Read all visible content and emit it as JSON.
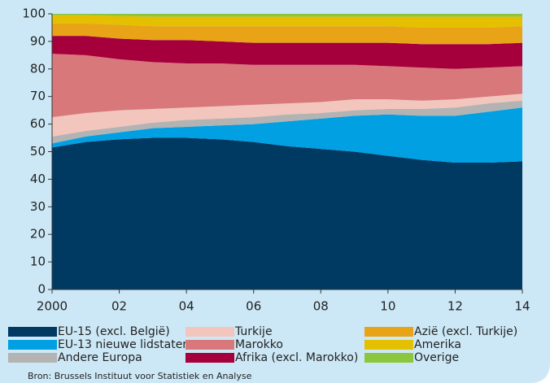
{
  "chart_data": {
    "type": "stacked_area",
    "x": [
      2000,
      2001,
      2002,
      2003,
      2004,
      2005,
      2006,
      2007,
      2008,
      2009,
      2010,
      2011,
      2012,
      2013,
      2014
    ],
    "xlim": [
      2000,
      2014
    ],
    "xticks": [
      2000,
      {
        "value": 2002,
        "label": "02"
      },
      {
        "value": 2004,
        "label": "04"
      },
      {
        "value": 2006,
        "label": "06"
      },
      {
        "value": 2008,
        "label": "08"
      },
      {
        "value": 2010,
        "label": "10"
      },
      {
        "value": 2012,
        "label": "12"
      },
      {
        "value": 2014,
        "label": "14"
      }
    ],
    "ylim": [
      0,
      100
    ],
    "yticks": [
      0,
      10,
      20,
      30,
      40,
      50,
      60,
      70,
      80,
      90,
      100
    ],
    "series": [
      {
        "name": "EU-15 (excl. België)",
        "color": "#003a63",
        "values": [
          51.5,
          53.5,
          54.5,
          55,
          55,
          54.5,
          53.5,
          52,
          51,
          50,
          48.5,
          47,
          46,
          46,
          46.5
        ]
      },
      {
        "name": "EU-13 nieuwe lidstaten",
        "color": "#00a0e3",
        "values": [
          1.5,
          2,
          2.5,
          3.5,
          4,
          5,
          6.5,
          9,
          11,
          13,
          15,
          16,
          17,
          18.5,
          19.5
        ]
      },
      {
        "name": "Andere Europa",
        "color": "#b3b3b3",
        "values": [
          2.5,
          2,
          2,
          2,
          2.5,
          2.5,
          2.5,
          2.5,
          2,
          2,
          2,
          2.5,
          3,
          3,
          2.5
        ]
      },
      {
        "name": "Turkije",
        "color": "#f2c6bd",
        "values": [
          7,
          6.5,
          6,
          5,
          4.5,
          4.5,
          4.5,
          4,
          4,
          4,
          3.5,
          3,
          3,
          2.5,
          2.5
        ]
      },
      {
        "name": "Marokko",
        "color": "#d9787a",
        "values": [
          23,
          21,
          18.5,
          17,
          16,
          15.5,
          14.5,
          14,
          13.5,
          12.5,
          12,
          12,
          11,
          10.5,
          10
        ]
      },
      {
        "name": "Afrika (excl. Marokko)",
        "color": "#a6003c",
        "values": [
          6.5,
          7,
          7.5,
          8,
          8.5,
          8,
          8,
          8,
          8,
          8,
          8.5,
          8.5,
          9,
          8.5,
          8.5
        ]
      },
      {
        "name": "Azië (excl. Turkije)",
        "color": "#e8a317",
        "values": [
          4.5,
          4.5,
          5,
          5,
          5,
          5.5,
          6,
          6,
          6,
          6,
          6,
          6,
          6,
          6,
          6
        ]
      },
      {
        "name": "Amerika",
        "color": "#e5c000",
        "values": [
          3,
          3,
          3.2,
          3.5,
          3.5,
          3.5,
          3.5,
          3.5,
          3.5,
          3.5,
          3.5,
          4,
          4,
          4,
          3.5
        ]
      },
      {
        "name": "Overige",
        "color": "#8cc63f",
        "values": [
          0.5,
          0.5,
          0.8,
          1,
          1,
          1,
          1,
          1,
          1,
          1,
          1,
          1,
          1,
          1,
          1
        ]
      }
    ],
    "source": "Bron: Brussels Instituut voor Statistiek en Analyse"
  }
}
